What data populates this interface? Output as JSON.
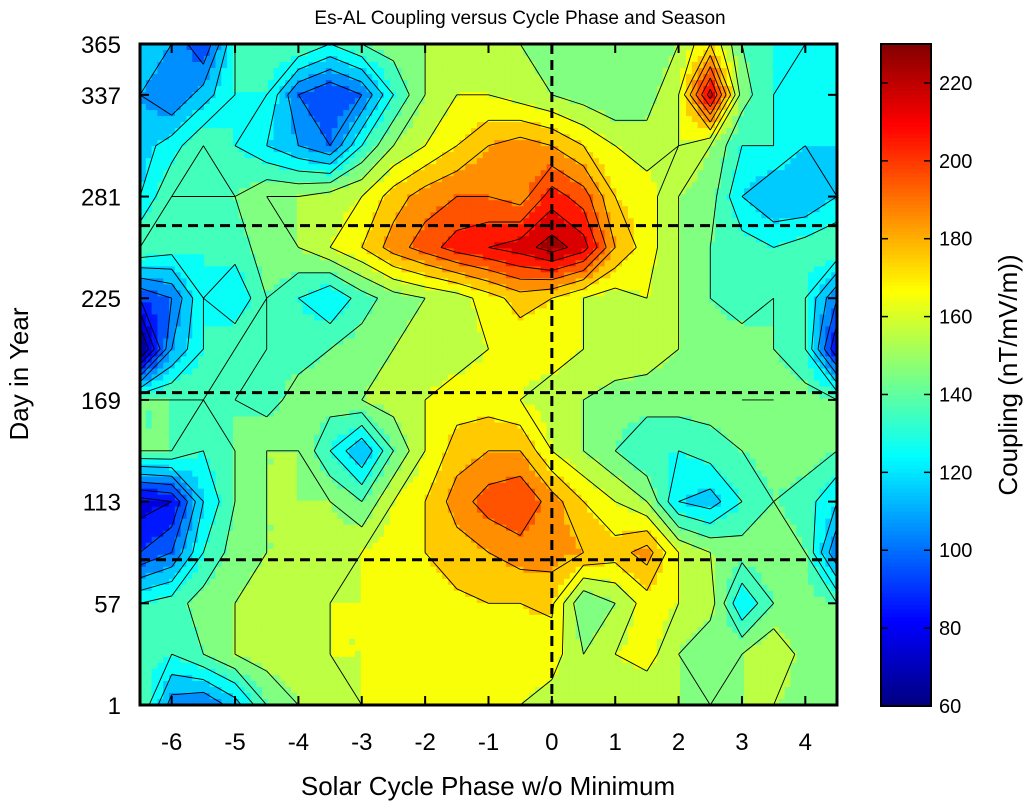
{
  "chart_data": {
    "type": "heatmap",
    "subtype": "filled-contour",
    "title": "Es-AL Coupling versus Cycle Phase and Season",
    "xlabel": "Solar Cycle Phase w/o Minimum",
    "ylabel": "Day in Year",
    "colorbar_label": "Coupling (nT/mV/m))",
    "xlim": [
      -6.5,
      4.5
    ],
    "ylim": [
      1,
      365
    ],
    "x_ticks": [
      -6,
      -5,
      -4,
      -3,
      -2,
      -1,
      0,
      1,
      2,
      3,
      4
    ],
    "x_tick_labels": [
      "-6",
      "-5",
      "-4",
      "-3",
      "-2",
      "-1",
      "0",
      "1",
      "2",
      "3",
      "4"
    ],
    "y_ticks": [
      1,
      57,
      113,
      169,
      225,
      281,
      337,
      365
    ],
    "y_tick_labels": [
      "1",
      "57",
      "113",
      "169",
      "225",
      "281",
      "337",
      "365"
    ],
    "clim": [
      60,
      230
    ],
    "colorbar_ticks": [
      60,
      80,
      100,
      120,
      140,
      160,
      180,
      200,
      220
    ],
    "colorbar_tick_labels": [
      "60",
      "80",
      "100",
      "120",
      "140",
      "160",
      "180",
      "200",
      "220"
    ],
    "colormap": "jet",
    "contour_levels": [
      70,
      80,
      90,
      100,
      110,
      120,
      130,
      140,
      150,
      160,
      170,
      180,
      190,
      200,
      210,
      220
    ],
    "reference_lines": {
      "vertical_x": [
        0
      ],
      "horizontal_y": [
        81,
        173,
        265
      ],
      "style": "dashed",
      "color": "#000000"
    },
    "x": [
      -6.5,
      -6,
      -5.5,
      -5,
      -4.5,
      -4,
      -3.5,
      -3,
      -2.5,
      -2,
      -1.5,
      -1,
      -0.5,
      0,
      0.5,
      1,
      1.5,
      2,
      2.5,
      3,
      3.5,
      4,
      4.5
    ],
    "y": [
      1,
      29,
      57,
      85,
      113,
      141,
      169,
      197,
      225,
      253,
      281,
      309,
      337,
      365
    ],
    "z": [
      [
        140,
        105,
        100,
        115,
        140,
        150,
        155,
        160,
        165,
        170,
        170,
        165,
        160,
        155,
        150,
        150,
        150,
        150,
        150,
        150,
        150,
        145,
        140
      ],
      [
        135,
        130,
        140,
        150,
        155,
        155,
        160,
        160,
        165,
        165,
        165,
        168,
        168,
        165,
        150,
        160,
        165,
        150,
        140,
        150,
        160,
        145,
        140
      ],
      [
        130,
        135,
        145,
        150,
        155,
        155,
        160,
        160,
        165,
        165,
        168,
        170,
        170,
        172,
        140,
        150,
        165,
        160,
        155,
        120,
        140,
        145,
        140
      ],
      [
        90,
        100,
        130,
        145,
        150,
        150,
        155,
        160,
        165,
        170,
        175,
        180,
        185,
        185,
        180,
        175,
        185,
        160,
        150,
        145,
        150,
        140,
        100
      ],
      [
        75,
        80,
        120,
        140,
        150,
        150,
        150,
        140,
        160,
        170,
        185,
        195,
        200,
        185,
        170,
        160,
        150,
        120,
        115,
        130,
        140,
        135,
        120
      ],
      [
        140,
        140,
        130,
        140,
        150,
        150,
        130,
        110,
        140,
        160,
        175,
        180,
        180,
        160,
        150,
        140,
        130,
        130,
        135,
        140,
        145,
        145,
        140
      ],
      [
        140,
        140,
        140,
        140,
        135,
        145,
        145,
        150,
        155,
        160,
        165,
        165,
        160,
        155,
        150,
        145,
        145,
        145,
        145,
        150,
        150,
        145,
        140
      ],
      [
        55,
        110,
        130,
        140,
        140,
        135,
        140,
        145,
        150,
        155,
        155,
        160,
        162,
        165,
        160,
        158,
        155,
        150,
        145,
        145,
        140,
        130,
        80
      ],
      [
        90,
        100,
        130,
        120,
        140,
        130,
        120,
        135,
        145,
        150,
        155,
        165,
        175,
        170,
        160,
        155,
        160,
        150,
        140,
        135,
        140,
        130,
        100
      ],
      [
        140,
        135,
        130,
        135,
        145,
        150,
        160,
        170,
        185,
        195,
        205,
        210,
        215,
        225,
        215,
        180,
        165,
        150,
        140,
        135,
        130,
        135,
        140
      ],
      [
        120,
        140,
        140,
        140,
        150,
        150,
        155,
        160,
        175,
        185,
        190,
        190,
        185,
        205,
        195,
        170,
        165,
        150,
        145,
        120,
        110,
        110,
        120
      ],
      [
        115,
        125,
        140,
        130,
        120,
        110,
        100,
        130,
        150,
        160,
        170,
        180,
        185,
        180,
        170,
        160,
        155,
        160,
        150,
        130,
        130,
        120,
        120
      ],
      [
        110,
        100,
        115,
        130,
        130,
        100,
        90,
        100,
        130,
        150,
        160,
        160,
        155,
        150,
        145,
        140,
        145,
        160,
        215,
        145,
        130,
        125,
        120
      ],
      [
        120,
        110,
        90,
        130,
        140,
        140,
        130,
        140,
        145,
        150,
        155,
        155,
        150,
        145,
        140,
        140,
        140,
        150,
        170,
        140,
        130,
        130,
        125
      ]
    ]
  }
}
